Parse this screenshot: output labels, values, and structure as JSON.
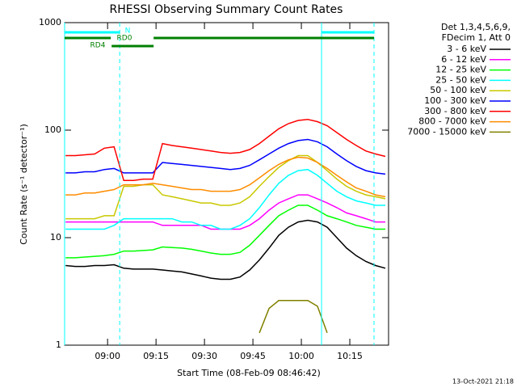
{
  "chart_data": {
    "type": "line",
    "title": "RHESSI Observing Summary Count Rates",
    "xlabel": "Start Time (08-Feb-09 08:46:42)",
    "ylabel": "Count Rate (s⁻¹ detector⁻¹)",
    "footer": "13-Oct-2021 21:18",
    "legend_header": [
      "Det 1,3,4,5,6,9,",
      "FDecim 1, Att 0"
    ],
    "log_y": true,
    "xlim": [
      -13.3,
      87
    ],
    "ylim": [
      1,
      1000
    ],
    "xticks": [
      {
        "value": 0,
        "label": "09:00"
      },
      {
        "value": 15,
        "label": "09:15"
      },
      {
        "value": 30,
        "label": "09:30"
      },
      {
        "value": 45,
        "label": "09:45"
      },
      {
        "value": 60,
        "label": "10:00"
      },
      {
        "value": 75,
        "label": "10:15"
      }
    ],
    "yticks": [
      1,
      10,
      100,
      1000
    ],
    "x": [
      -13,
      -10,
      -7,
      -4,
      -1,
      2,
      5,
      8,
      11,
      14,
      17,
      20,
      23,
      26,
      29,
      32,
      35,
      38,
      41,
      44,
      47,
      50,
      53,
      56,
      59,
      62,
      65,
      68,
      71,
      74,
      77,
      80,
      83,
      86
    ],
    "series": [
      {
        "name": "3 - 6 keV",
        "color": "#000000",
        "values": [
          5.5,
          5.4,
          5.4,
          5.5,
          5.5,
          5.6,
          5.2,
          5.1,
          5.1,
          5.1,
          5,
          4.9,
          4.8,
          4.6,
          4.4,
          4.2,
          4.1,
          4.1,
          4.3,
          5,
          6.2,
          8,
          10.5,
          12.5,
          14,
          14.5,
          14,
          12.5,
          10,
          8,
          6.8,
          6,
          5.5,
          5.2
        ]
      },
      {
        "name": "6 - 12 keV",
        "color": "#ff00ff",
        "values": [
          14,
          14,
          14,
          14,
          14,
          14,
          14,
          14,
          14,
          14,
          13,
          13,
          13,
          13,
          13,
          12,
          12,
          12,
          12,
          13,
          15,
          18,
          21,
          23,
          25,
          25,
          23,
          21,
          19,
          17,
          16,
          15,
          14,
          14
        ]
      },
      {
        "name": "12 - 25 keV",
        "color": "#00ff00",
        "values": [
          6.5,
          6.5,
          6.6,
          6.7,
          6.8,
          7,
          7.5,
          7.5,
          7.6,
          7.7,
          8.2,
          8.1,
          8,
          7.8,
          7.5,
          7.2,
          7,
          7,
          7.3,
          8.5,
          10.5,
          13,
          16,
          18,
          20,
          20,
          18,
          16,
          15,
          14,
          13,
          12.5,
          12,
          12
        ]
      },
      {
        "name": "25 - 50 keV",
        "color": "#00ffff",
        "values": [
          12,
          12,
          12,
          12,
          12,
          13,
          15,
          15,
          15,
          15,
          15,
          15,
          14,
          14,
          13,
          13,
          12,
          12,
          13,
          15,
          19,
          25,
          32,
          38,
          42,
          43,
          38,
          32,
          27,
          24,
          22,
          21,
          20,
          20
        ]
      },
      {
        "name": "50 - 100 keV",
        "color": "#c8c800",
        "values": [
          15,
          15,
          15,
          15,
          16,
          16,
          30,
          30,
          31,
          31,
          25,
          24,
          23,
          22,
          21,
          21,
          20,
          20,
          21,
          24,
          30,
          37,
          45,
          52,
          58,
          58,
          50,
          42,
          35,
          30,
          27,
          25,
          24,
          23
        ]
      },
      {
        "name": "100 - 300 keV",
        "color": "#0000ff",
        "values": [
          40,
          40,
          41,
          41,
          43,
          44,
          40,
          40,
          40,
          40,
          50,
          49,
          48,
          47,
          46,
          45,
          44,
          43,
          44,
          47,
          53,
          60,
          68,
          75,
          80,
          82,
          78,
          70,
          60,
          52,
          46,
          42,
          40,
          39
        ]
      },
      {
        "name": "300 - 800 keV",
        "color": "#ff0000",
        "values": [
          58,
          58,
          59,
          60,
          68,
          70,
          34,
          34,
          35,
          35,
          75,
          72,
          70,
          68,
          66,
          64,
          62,
          61,
          62,
          66,
          75,
          88,
          103,
          115,
          123,
          126,
          120,
          110,
          95,
          82,
          72,
          64,
          60,
          57
        ]
      },
      {
        "name": "800 - 7000 keV",
        "color": "#ff8c00",
        "values": [
          25,
          25,
          26,
          26,
          27,
          28,
          31,
          31,
          31,
          32,
          31,
          30,
          29,
          28,
          28,
          27,
          27,
          27,
          28,
          31,
          36,
          42,
          48,
          53,
          56,
          55,
          50,
          44,
          38,
          33,
          29,
          27,
          25,
          24
        ]
      },
      {
        "name": "7000 - 15000 keV",
        "color": "#808000",
        "values": [
          null,
          null,
          null,
          null,
          null,
          null,
          null,
          null,
          null,
          null,
          null,
          null,
          null,
          null,
          null,
          null,
          null,
          null,
          null,
          null,
          1.3,
          2.2,
          2.6,
          2.6,
          2.6,
          2.6,
          2.3,
          1.3,
          null,
          null,
          null,
          null,
          null,
          null
        ]
      }
    ],
    "flags": [
      {
        "label": "N",
        "color": "#00ffff",
        "spans": [
          [
            -13.3,
            3.75
          ],
          [
            66.25,
            82.5
          ]
        ]
      },
      {
        "label": "RD0",
        "color": "#008000",
        "spans": [
          [
            -13.3,
            1
          ],
          [
            14.25,
            82.5
          ]
        ]
      },
      {
        "label": "RD4",
        "color": "#008000",
        "spans": [
          [
            1.25,
            14.25
          ]
        ]
      }
    ],
    "vlines": [
      {
        "x": -13.3,
        "style": "solid"
      },
      {
        "x": 3.75,
        "style": "dashed"
      },
      {
        "x": 66.25,
        "style": "solid"
      },
      {
        "x": 82.5,
        "style": "dashed"
      }
    ]
  }
}
